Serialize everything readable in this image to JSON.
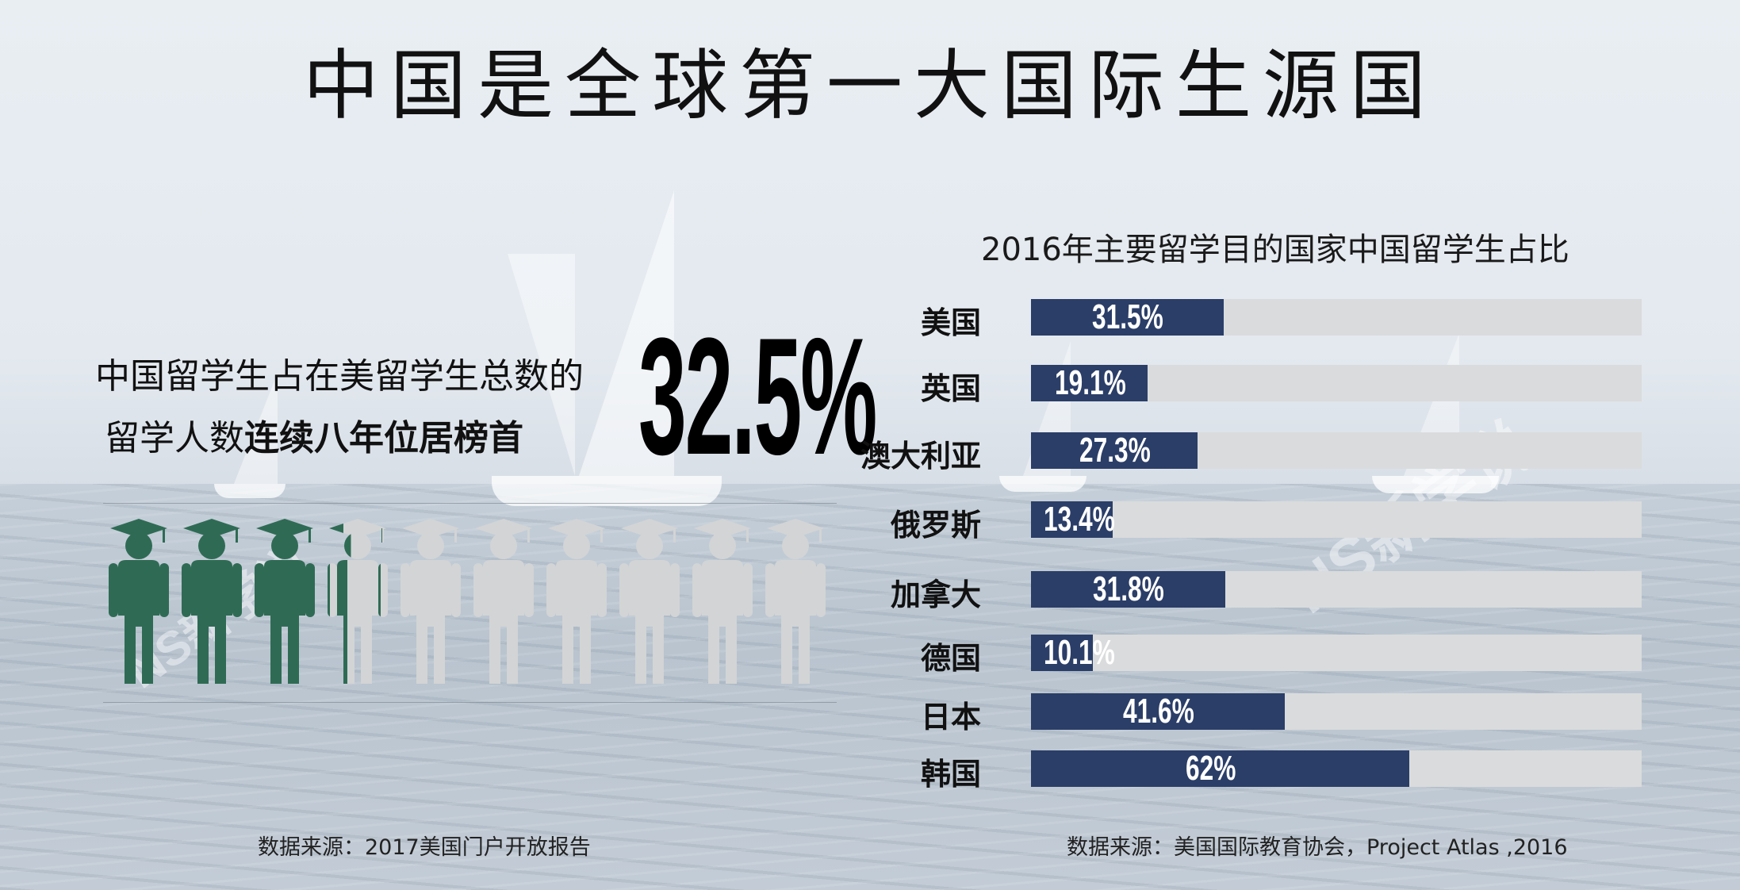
{
  "title": "中国是全球第一大国际生源国",
  "left_panel": {
    "line1": "中国留学生占在美留学生总数的",
    "line2_normal": "留学人数",
    "line2_bold": "连续八年位居榜首",
    "big_percent": "32.5%",
    "people_total": 10,
    "people_highlighted": 3.25,
    "highlight_color": "#2f6b54",
    "base_color": "#d3d4d5",
    "source": "数据来源：2017美国门户开放报告"
  },
  "chart_data": {
    "type": "bar",
    "orientation": "horizontal",
    "title": "2016年主要留学目的国家中国留学生占比",
    "categories": [
      "美国",
      "英国",
      "澳大利亚",
      "俄罗斯",
      "加拿大",
      "德国",
      "日本",
      "韩国"
    ],
    "values": [
      31.5,
      19.1,
      27.3,
      13.4,
      31.8,
      10.1,
      41.6,
      62
    ],
    "value_labels": [
      "31.5%",
      "19.1%",
      "27.3%",
      "13.4%",
      "31.8%",
      "10.1%",
      "41.6%",
      "62%"
    ],
    "xlim": [
      0,
      100
    ],
    "bar_color": "#2b3e68",
    "track_color": "#dadbdc",
    "source": "数据来源：美国国际教育协会，Project Atlas ,2016"
  },
  "watermark": "NS新学说"
}
